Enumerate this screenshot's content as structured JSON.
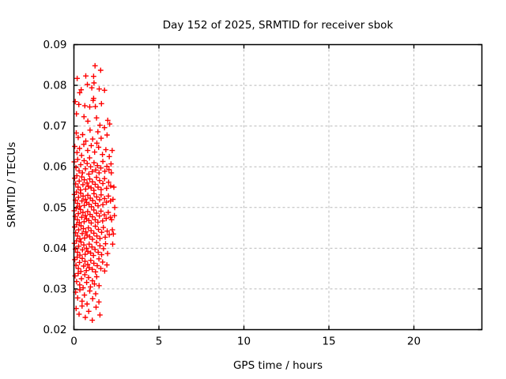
{
  "chart_data": {
    "type": "scatter",
    "title": "Day 152 of 2025, SRMTID for receiver sbok",
    "xlabel": "GPS time / hours",
    "ylabel": "SRMTID / TECUs",
    "xlim": [
      0,
      24
    ],
    "ylim": [
      0.02,
      0.09
    ],
    "xticks": [
      0,
      5,
      10,
      15,
      20
    ],
    "xtick_labels": [
      "0",
      "5",
      "10",
      "15",
      "20"
    ],
    "yticks": [
      0.02,
      0.03,
      0.04,
      0.05,
      0.06,
      0.07,
      0.08,
      0.09
    ],
    "ytick_labels": [
      "0.02",
      "0.03",
      "0.04",
      "0.05",
      "0.06",
      "0.07",
      "0.08",
      "0.09"
    ],
    "grid": "dashed",
    "legend": "none",
    "marker": "plus",
    "marker_color": "#ff0000",
    "grid_color": "#b9b9b9",
    "axis_color": "#000000",
    "background_color": "#ffffff",
    "points": [
      [
        1.24,
        0.0848
      ],
      [
        0.7,
        0.0823
      ],
      [
        1.57,
        0.0837
      ],
      [
        1.16,
        0.0822
      ],
      [
        0.43,
        0.0789
      ],
      [
        1.18,
        0.0806
      ],
      [
        0.19,
        0.0817
      ],
      [
        1.8,
        0.0788
      ],
      [
        0.79,
        0.0802
      ],
      [
        0.34,
        0.0782
      ],
      [
        1.49,
        0.0791
      ],
      [
        1.05,
        0.0794
      ],
      [
        0.93,
        0.0747
      ],
      [
        0.08,
        0.076
      ],
      [
        1.16,
        0.0768
      ],
      [
        0.64,
        0.075
      ],
      [
        1.62,
        0.0755
      ],
      [
        0.29,
        0.0753
      ],
      [
        1.26,
        0.0748
      ],
      [
        1.13,
        0.0763
      ],
      [
        1.33,
        0.072
      ],
      [
        0.15,
        0.073
      ],
      [
        0.82,
        0.0712
      ],
      [
        2.1,
        0.0705
      ],
      [
        0.59,
        0.0723
      ],
      [
        1.53,
        0.0702
      ],
      [
        1.99,
        0.0714
      ],
      [
        0.95,
        0.069
      ],
      [
        1.8,
        0.0696
      ],
      [
        0.25,
        0.0672
      ],
      [
        1.1,
        0.0668
      ],
      [
        0.14,
        0.0683
      ],
      [
        1.95,
        0.0678
      ],
      [
        0.51,
        0.0679
      ],
      [
        1.6,
        0.067
      ],
      [
        1.41,
        0.0686
      ],
      [
        0.7,
        0.0663
      ],
      [
        1.22,
        0.0636
      ],
      [
        0.05,
        0.065
      ],
      [
        0.81,
        0.064
      ],
      [
        1.68,
        0.063
      ],
      [
        0.33,
        0.0645
      ],
      [
        2.08,
        0.0625
      ],
      [
        1.02,
        0.0652
      ],
      [
        0.45,
        0.0628
      ],
      [
        1.45,
        0.0648
      ],
      [
        0.92,
        0.0622
      ],
      [
        0.58,
        0.0655
      ],
      [
        1.88,
        0.0642
      ],
      [
        0.18,
        0.0635
      ],
      [
        1.35,
        0.0658
      ],
      [
        2.25,
        0.064
      ],
      [
        0.6,
        0.0615
      ],
      [
        1.28,
        0.0592
      ],
      [
        0.02,
        0.0612
      ],
      [
        1.7,
        0.0613
      ],
      [
        0.3,
        0.059
      ],
      [
        0.98,
        0.06
      ],
      [
        2.18,
        0.0607
      ],
      [
        0.5,
        0.0585
      ],
      [
        1.38,
        0.0603
      ],
      [
        0.12,
        0.0598
      ],
      [
        1.82,
        0.0589
      ],
      [
        0.78,
        0.0608
      ],
      [
        0.22,
        0.0618
      ],
      [
        1.08,
        0.0588
      ],
      [
        1.94,
        0.0601
      ],
      [
        0.4,
        0.0605
      ],
      [
        0.88,
        0.0582
      ],
      [
        1.58,
        0.0597
      ],
      [
        0.68,
        0.0595
      ],
      [
        2.06,
        0.0593
      ],
      [
        1.18,
        0.061
      ],
      [
        1.48,
        0.0585
      ],
      [
        2.2,
        0.0585
      ],
      [
        0.93,
        0.057
      ],
      [
        0.24,
        0.055
      ],
      [
        1.51,
        0.0566
      ],
      [
        0.04,
        0.0572
      ],
      [
        1.17,
        0.0542
      ],
      [
        0.61,
        0.0568
      ],
      [
        1.8,
        0.0571
      ],
      [
        0.38,
        0.0543
      ],
      [
        1.01,
        0.0548
      ],
      [
        0.17,
        0.0578
      ],
      [
        1.33,
        0.0574
      ],
      [
        0.69,
        0.0545
      ],
      [
        2.04,
        0.0562
      ],
      [
        0.46,
        0.0575
      ],
      [
        1.6,
        0.0544
      ],
      [
        0.85,
        0.0552
      ],
      [
        0.1,
        0.0558
      ],
      [
        1.42,
        0.055
      ],
      [
        0.77,
        0.056
      ],
      [
        1.92,
        0.0547
      ],
      [
        0.31,
        0.0565
      ],
      [
        1.09,
        0.0563
      ],
      [
        0.53,
        0.0556
      ],
      [
        2.16,
        0.0553
      ],
      [
        1.25,
        0.0557
      ],
      [
        1.7,
        0.0559
      ],
      [
        2.35,
        0.055
      ],
      [
        0.4,
        0.0535
      ],
      [
        1.18,
        0.0534
      ],
      [
        0.03,
        0.0532
      ],
      [
        1.6,
        0.0531
      ],
      [
        0.82,
        0.053
      ],
      [
        2.03,
        0.0528
      ],
      [
        0.15,
        0.0538
      ],
      [
        1.34,
        0.0526
      ],
      [
        0.54,
        0.0528
      ],
      [
        0.96,
        0.0523
      ],
      [
        1.8,
        0.0522
      ],
      [
        0.27,
        0.0525
      ],
      [
        0.68,
        0.052
      ],
      [
        1.51,
        0.0519
      ],
      [
        1.1,
        0.0517
      ],
      [
        0.47,
        0.0516
      ],
      [
        2.15,
        0.0516
      ],
      [
        0.09,
        0.0518
      ],
      [
        0.89,
        0.0508
      ],
      [
        1.26,
        0.051
      ],
      [
        0.21,
        0.051
      ],
      [
        1.91,
        0.0513
      ],
      [
        0.61,
        0.0505
      ],
      [
        1.03,
        0.0502
      ],
      [
        0.33,
        0.0503
      ],
      [
        1.42,
        0.0504
      ],
      [
        0.75,
        0.0512
      ],
      [
        1.7,
        0.0507
      ],
      [
        2.3,
        0.052
      ],
      [
        2.4,
        0.05
      ],
      [
        0.14,
        0.0498
      ],
      [
        0.81,
        0.049
      ],
      [
        1.17,
        0.0494
      ],
      [
        0.39,
        0.0495
      ],
      [
        1.59,
        0.0491
      ],
      [
        0.02,
        0.0492
      ],
      [
        2.02,
        0.0488
      ],
      [
        0.53,
        0.0488
      ],
      [
        0.95,
        0.0483
      ],
      [
        1.33,
        0.0486
      ],
      [
        0.26,
        0.0485
      ],
      [
        1.79,
        0.0482
      ],
      [
        0.67,
        0.048
      ],
      [
        1.09,
        0.0477
      ],
      [
        0.08,
        0.0478
      ],
      [
        1.5,
        0.0479
      ],
      [
        0.46,
        0.0476
      ],
      [
        2.14,
        0.0476
      ],
      [
        0.88,
        0.0468
      ],
      [
        1.25,
        0.047
      ],
      [
        0.2,
        0.047
      ],
      [
        1.69,
        0.0467
      ],
      [
        0.6,
        0.0465
      ],
      [
        1.02,
        0.0462
      ],
      [
        0.32,
        0.0463
      ],
      [
        1.41,
        0.0464
      ],
      [
        0.74,
        0.0472
      ],
      [
        1.9,
        0.0473
      ],
      [
        2.38,
        0.048
      ],
      [
        2.22,
        0.047
      ],
      [
        0.16,
        0.0458
      ],
      [
        0.85,
        0.045
      ],
      [
        1.26,
        0.0454
      ],
      [
        0.42,
        0.0455
      ],
      [
        1.73,
        0.0451
      ],
      [
        0.04,
        0.0452
      ],
      [
        1.01,
        0.0443
      ],
      [
        0.28,
        0.0445
      ],
      [
        1.44,
        0.0446
      ],
      [
        0.56,
        0.0448
      ],
      [
        1.96,
        0.0442
      ],
      [
        0.7,
        0.044
      ],
      [
        1.17,
        0.0437
      ],
      [
        0.1,
        0.0438
      ],
      [
        1.63,
        0.0439
      ],
      [
        0.49,
        0.0436
      ],
      [
        2.08,
        0.0433
      ],
      [
        0.77,
        0.0432
      ],
      [
        1.35,
        0.043
      ],
      [
        0.22,
        0.043
      ],
      [
        0.93,
        0.0428
      ],
      [
        1.84,
        0.0427
      ],
      [
        0.63,
        0.0425
      ],
      [
        1.09,
        0.0422
      ],
      [
        0.35,
        0.0423
      ],
      [
        1.53,
        0.0424
      ],
      [
        2.26,
        0.0445
      ],
      [
        2.32,
        0.0435
      ],
      [
        0.15,
        0.0418
      ],
      [
        0.42,
        0.0415
      ],
      [
        1.33,
        0.0414
      ],
      [
        0.03,
        0.0412
      ],
      [
        0.9,
        0.041
      ],
      [
        1.86,
        0.0411
      ],
      [
        0.58,
        0.0408
      ],
      [
        1.06,
        0.0403
      ],
      [
        0.28,
        0.0405
      ],
      [
        1.53,
        0.0406
      ],
      [
        0.74,
        0.04
      ],
      [
        1.24,
        0.0397
      ],
      [
        0.09,
        0.0398
      ],
      [
        1.74,
        0.0399
      ],
      [
        0.5,
        0.0396
      ],
      [
        0.82,
        0.0392
      ],
      [
        1.43,
        0.039
      ],
      [
        0.21,
        0.039
      ],
      [
        0.98,
        0.0388
      ],
      [
        1.98,
        0.0387
      ],
      [
        0.66,
        0.0385
      ],
      [
        1.15,
        0.0382
      ],
      [
        0.35,
        0.0383
      ],
      [
        1.63,
        0.0384
      ],
      [
        2.28,
        0.041
      ],
      [
        0.19,
        0.0378
      ],
      [
        0.49,
        0.0375
      ],
      [
        1.47,
        0.0374
      ],
      [
        0.05,
        0.0372
      ],
      [
        0.99,
        0.037
      ],
      [
        0.65,
        0.0368
      ],
      [
        1.69,
        0.0366
      ],
      [
        0.33,
        0.0365
      ],
      [
        1.17,
        0.0363
      ],
      [
        0.81,
        0.036
      ],
      [
        1.94,
        0.0359
      ],
      [
        0.12,
        0.0358
      ],
      [
        1.37,
        0.0357
      ],
      [
        0.57,
        0.0356
      ],
      [
        0.9,
        0.0352
      ],
      [
        1.58,
        0.035
      ],
      [
        0.26,
        0.035
      ],
      [
        1.08,
        0.0348
      ],
      [
        0.73,
        0.0345
      ],
      [
        1.81,
        0.0344
      ],
      [
        0.41,
        0.0343
      ],
      [
        1.27,
        0.0342
      ],
      [
        0.25,
        0.0338
      ],
      [
        0.64,
        0.0335
      ],
      [
        0.07,
        0.0332
      ],
      [
        1.34,
        0.033
      ],
      [
        0.86,
        0.0328
      ],
      [
        0.44,
        0.0325
      ],
      [
        1.09,
        0.032
      ],
      [
        0.16,
        0.0318
      ],
      [
        0.75,
        0.0316
      ],
      [
        1.21,
        0.0312
      ],
      [
        0.34,
        0.031
      ],
      [
        0.97,
        0.0305
      ],
      [
        1.48,
        0.0308
      ],
      [
        0.54,
        0.0303
      ],
      [
        0.35,
        0.0298
      ],
      [
        0.93,
        0.0295
      ],
      [
        0.1,
        0.0292
      ],
      [
        1.28,
        0.0288
      ],
      [
        0.62,
        0.0285
      ],
      [
        0.22,
        0.0278
      ],
      [
        1.1,
        0.0276
      ],
      [
        0.48,
        0.027
      ],
      [
        1.47,
        0.0268
      ],
      [
        0.77,
        0.0263
      ],
      [
        0.48,
        0.0258
      ],
      [
        0.13,
        0.0252
      ],
      [
        1.3,
        0.0255
      ],
      [
        0.87,
        0.0245
      ],
      [
        0.3,
        0.0238
      ],
      [
        1.53,
        0.0236
      ],
      [
        0.67,
        0.023
      ],
      [
        1.08,
        0.0223
      ]
    ]
  }
}
